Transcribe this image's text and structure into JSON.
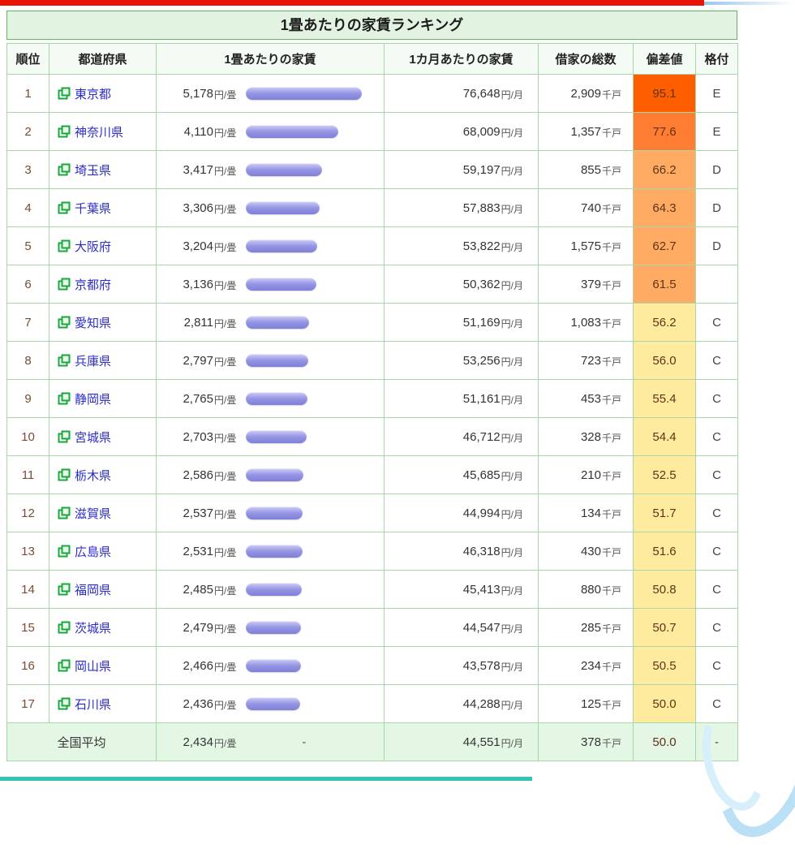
{
  "page": {
    "title": "1畳あたりの家賃ランキング",
    "accent_red": "#e81505",
    "accent_teal": "#2ec4b6",
    "accent_lightblue": "#b9e0f4",
    "table_border_green": "#6abf6a",
    "title_bg_green": "#e2f3e2"
  },
  "table": {
    "headers": [
      "順位",
      "都道府県",
      "1畳あたりの家賃",
      "1カ月あたりの家賃",
      "借家の総数",
      "偏差値",
      "格付"
    ],
    "unit_per_tatami": "円/畳",
    "unit_per_month": "円/月",
    "unit_households": "千戸",
    "bar_color": "#8f8fe2",
    "bar_max_value": 5178,
    "bar_max_width": 143,
    "rows": [
      {
        "rank": "1",
        "pref": "東京都",
        "per_tatami": "5,178",
        "per_tatami_value": 5178,
        "per_month": "76,648",
        "households": "2,909",
        "deviation": "95.1",
        "deviation_color": "#ff5e00",
        "rating": "E"
      },
      {
        "rank": "2",
        "pref": "神奈川県",
        "per_tatami": "4,110",
        "per_tatami_value": 4110,
        "per_month": "68,009",
        "households": "1,357",
        "deviation": "77.6",
        "deviation_color": "#ff7d33",
        "rating": "E"
      },
      {
        "rank": "3",
        "pref": "埼玉県",
        "per_tatami": "3,417",
        "per_tatami_value": 3417,
        "per_month": "59,197",
        "households": "855",
        "deviation": "66.2",
        "deviation_color": "#ffab63",
        "rating": "D"
      },
      {
        "rank": "4",
        "pref": "千葉県",
        "per_tatami": "3,306",
        "per_tatami_value": 3306,
        "per_month": "57,883",
        "households": "740",
        "deviation": "64.3",
        "deviation_color": "#ffab63",
        "rating": "D"
      },
      {
        "rank": "5",
        "pref": "大阪府",
        "per_tatami": "3,204",
        "per_tatami_value": 3204,
        "per_month": "53,822",
        "households": "1,575",
        "deviation": "62.7",
        "deviation_color": "#ffab63",
        "rating": "D"
      },
      {
        "rank": "6",
        "pref": "京都府",
        "per_tatami": "3,136",
        "per_tatami_value": 3136,
        "per_month": "50,362",
        "households": "379",
        "deviation": "61.5",
        "deviation_color": "#ffab63",
        "rating": ""
      },
      {
        "rank": "7",
        "pref": "愛知県",
        "per_tatami": "2,811",
        "per_tatami_value": 2811,
        "per_month": "51,169",
        "households": "1,083",
        "deviation": "56.2",
        "deviation_color": "#ffeb9e",
        "rating": "C"
      },
      {
        "rank": "8",
        "pref": "兵庫県",
        "per_tatami": "2,797",
        "per_tatami_value": 2797,
        "per_month": "53,256",
        "households": "723",
        "deviation": "56.0",
        "deviation_color": "#ffeb9e",
        "rating": "C"
      },
      {
        "rank": "9",
        "pref": "静岡県",
        "per_tatami": "2,765",
        "per_tatami_value": 2765,
        "per_month": "51,161",
        "households": "453",
        "deviation": "55.4",
        "deviation_color": "#ffeb9e",
        "rating": "C"
      },
      {
        "rank": "10",
        "pref": "宮城県",
        "per_tatami": "2,703",
        "per_tatami_value": 2703,
        "per_month": "46,712",
        "households": "328",
        "deviation": "54.4",
        "deviation_color": "#ffeb9e",
        "rating": "C"
      },
      {
        "rank": "11",
        "pref": "栃木県",
        "per_tatami": "2,586",
        "per_tatami_value": 2586,
        "per_month": "45,685",
        "households": "210",
        "deviation": "52.5",
        "deviation_color": "#ffeb9e",
        "rating": "C"
      },
      {
        "rank": "12",
        "pref": "滋賀県",
        "per_tatami": "2,537",
        "per_tatami_value": 2537,
        "per_month": "44,994",
        "households": "134",
        "deviation": "51.7",
        "deviation_color": "#ffeb9e",
        "rating": "C"
      },
      {
        "rank": "13",
        "pref": "広島県",
        "per_tatami": "2,531",
        "per_tatami_value": 2531,
        "per_month": "46,318",
        "households": "430",
        "deviation": "51.6",
        "deviation_color": "#ffeb9e",
        "rating": "C"
      },
      {
        "rank": "14",
        "pref": "福岡県",
        "per_tatami": "2,485",
        "per_tatami_value": 2485,
        "per_month": "45,413",
        "households": "880",
        "deviation": "50.8",
        "deviation_color": "#ffeb9e",
        "rating": "C"
      },
      {
        "rank": "15",
        "pref": "茨城県",
        "per_tatami": "2,479",
        "per_tatami_value": 2479,
        "per_month": "44,547",
        "households": "285",
        "deviation": "50.7",
        "deviation_color": "#ffeb9e",
        "rating": "C"
      },
      {
        "rank": "16",
        "pref": "岡山県",
        "per_tatami": "2,466",
        "per_tatami_value": 2466,
        "per_month": "43,578",
        "households": "234",
        "deviation": "50.5",
        "deviation_color": "#ffeb9e",
        "rating": "C"
      },
      {
        "rank": "17",
        "pref": "石川県",
        "per_tatami": "2,436",
        "per_tatami_value": 2436,
        "per_month": "44,288",
        "households": "125",
        "deviation": "50.0",
        "deviation_color": "#ffeb9e",
        "rating": "C"
      }
    ],
    "average_row": {
      "label": "全国平均",
      "per_tatami": "2,434",
      "bar": "-",
      "per_month": "44,551",
      "households": "378",
      "deviation": "50.0",
      "rating": "-"
    }
  }
}
